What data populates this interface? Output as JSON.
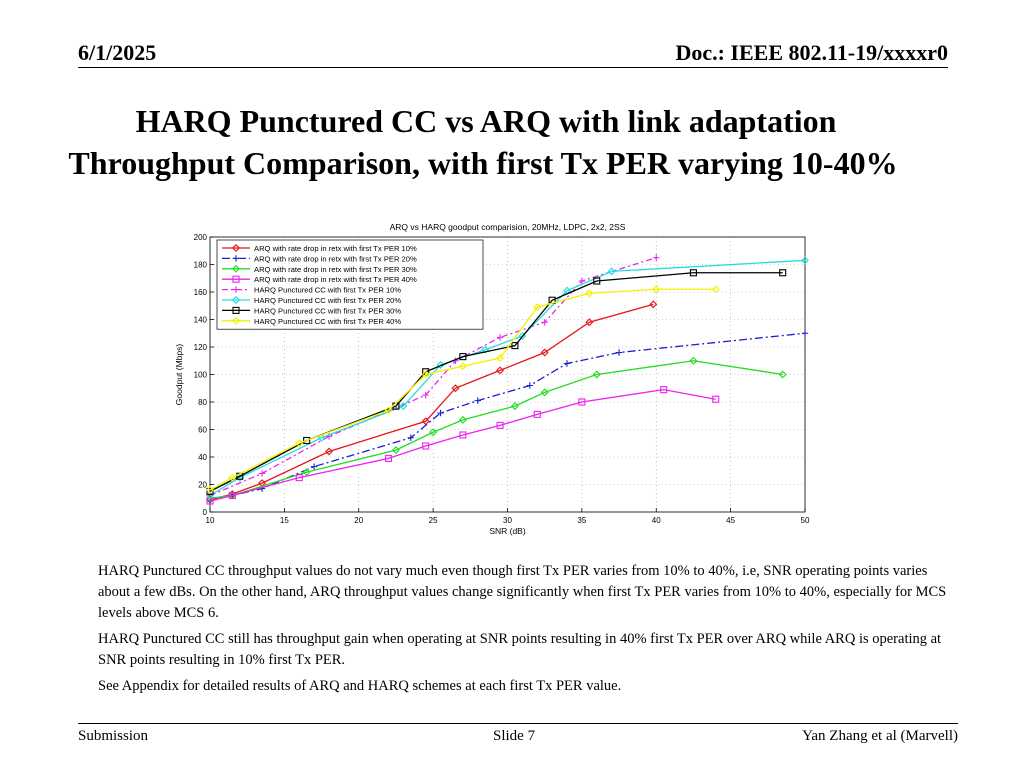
{
  "header": {
    "date": "6/1/2025",
    "doc": "Doc.: IEEE 802.11-19/xxxxr0"
  },
  "title": {
    "line1": "HARQ Punctured CC vs ARQ with link adaptation",
    "line2": "Throughput Comparison, with first Tx PER varying 10-40%"
  },
  "chart_data": {
    "type": "line",
    "title": "ARQ vs HARQ goodput comparision, 20MHz, LDPC, 2x2, 2SS",
    "xlabel": "SNR (dB)",
    "ylabel": "Goodput (Mbps)",
    "xlim": [
      10,
      50
    ],
    "ylim": [
      0,
      200
    ],
    "xticks": [
      10,
      15,
      20,
      25,
      30,
      35,
      40,
      45,
      50
    ],
    "yticks": [
      0,
      20,
      40,
      60,
      80,
      100,
      120,
      140,
      160,
      180,
      200
    ],
    "grid": true,
    "legend_position": "top-left",
    "series": [
      {
        "name": "ARQ with rate drop in retx with first Tx PER 10%",
        "color": "#e8141b",
        "dash": "",
        "marker": "diamond",
        "x": [
          10,
          11.5,
          13.5,
          18,
          24.5,
          26.5,
          29.5,
          32.5,
          35.5,
          39.8
        ],
        "y": [
          9,
          13,
          21,
          44,
          66,
          90,
          103,
          116,
          138,
          151
        ]
      },
      {
        "name": "ARQ with rate drop in retx with first Tx PER 20%",
        "color": "#1a22cc",
        "dash": "8 3 2 3",
        "marker": "plus",
        "x": [
          10,
          11.5,
          13.5,
          17,
          23.5,
          25.5,
          28,
          31.5,
          34,
          37.5,
          50
        ],
        "y": [
          8,
          12,
          17,
          33,
          54,
          72,
          81,
          92,
          108,
          116,
          130
        ]
      },
      {
        "name": "ARQ with rate drop in retx with first Tx PER 30%",
        "color": "#22dd22",
        "dash": "",
        "marker": "diamond",
        "x": [
          10,
          11.5,
          16.5,
          22.5,
          25,
          27,
          30.5,
          32.5,
          36,
          42.5,
          48.5
        ],
        "y": [
          10,
          12,
          29,
          45,
          58,
          67,
          77,
          87,
          100,
          110,
          100
        ]
      },
      {
        "name": "ARQ with rate drop in retx with first Tx PER 40%",
        "color": "#ee22ee",
        "dash": "",
        "marker": "square",
        "x": [
          10,
          11.5,
          16,
          22,
          24.5,
          27,
          29.5,
          32,
          35,
          40.5,
          44
        ],
        "y": [
          8,
          12,
          25,
          39,
          48,
          56,
          63,
          71,
          80,
          89,
          82
        ]
      },
      {
        "name": "HARQ Punctured CC with first Tx PER 10%",
        "color": "#ee22ee",
        "dash": "6 3 2 3",
        "marker": "plus",
        "x": [
          10,
          13.5,
          18,
          24.5,
          26.5,
          29.5,
          32.5,
          35,
          40
        ],
        "y": [
          12,
          28,
          55,
          85,
          110,
          127,
          138,
          168,
          185
        ]
      },
      {
        "name": "HARQ Punctured CC with first Tx PER 20%",
        "color": "#22dddd",
        "dash": "",
        "marker": "diamond",
        "x": [
          10,
          12,
          17.5,
          23,
          25.5,
          28.5,
          31,
          34,
          37,
          50
        ],
        "y": [
          12,
          25,
          54,
          77,
          107,
          118,
          128,
          161,
          175,
          183
        ]
      },
      {
        "name": "HARQ Punctured CC with first Tx PER 30%",
        "color": "#000000",
        "dash": "",
        "marker": "square",
        "x": [
          10,
          12,
          16.5,
          22.5,
          24.5,
          27,
          30.5,
          33,
          36,
          42.5,
          48.5
        ],
        "y": [
          15,
          26,
          52,
          77,
          102,
          113,
          121,
          154,
          168,
          174,
          174
        ]
      },
      {
        "name": "HARQ Punctured CC with first Tx PER 40%",
        "color": "#f2f200",
        "dash": "",
        "marker": "diamond",
        "x": [
          10,
          11.5,
          16,
          22,
          24.5,
          27,
          29.5,
          32,
          35.5,
          40,
          44
        ],
        "y": [
          16,
          25,
          50,
          74,
          100,
          106,
          112,
          149,
          159,
          162,
          162
        ]
      }
    ]
  },
  "body": {
    "p1": "HARQ Punctured CC throughput values do not vary much even though first Tx PER varies from 10% to 40%, i.e, SNR operating points varies about a few dBs. On the other hand, ARQ throughput values change significantly when first Tx PER varies from 10% to 40%, especially for MCS levels above MCS 6.",
    "p2": "HARQ Punctured CC still has throughput gain when operating at SNR points resulting in 40% first Tx PER over ARQ while ARQ is operating at SNR points resulting in 10% first Tx PER.",
    "p3": "See Appendix for detailed results of ARQ and HARQ schemes at each first Tx PER value."
  },
  "footer": {
    "left": "Submission",
    "center": "Slide 7",
    "right": "Yan Zhang et al (Marvell)"
  }
}
